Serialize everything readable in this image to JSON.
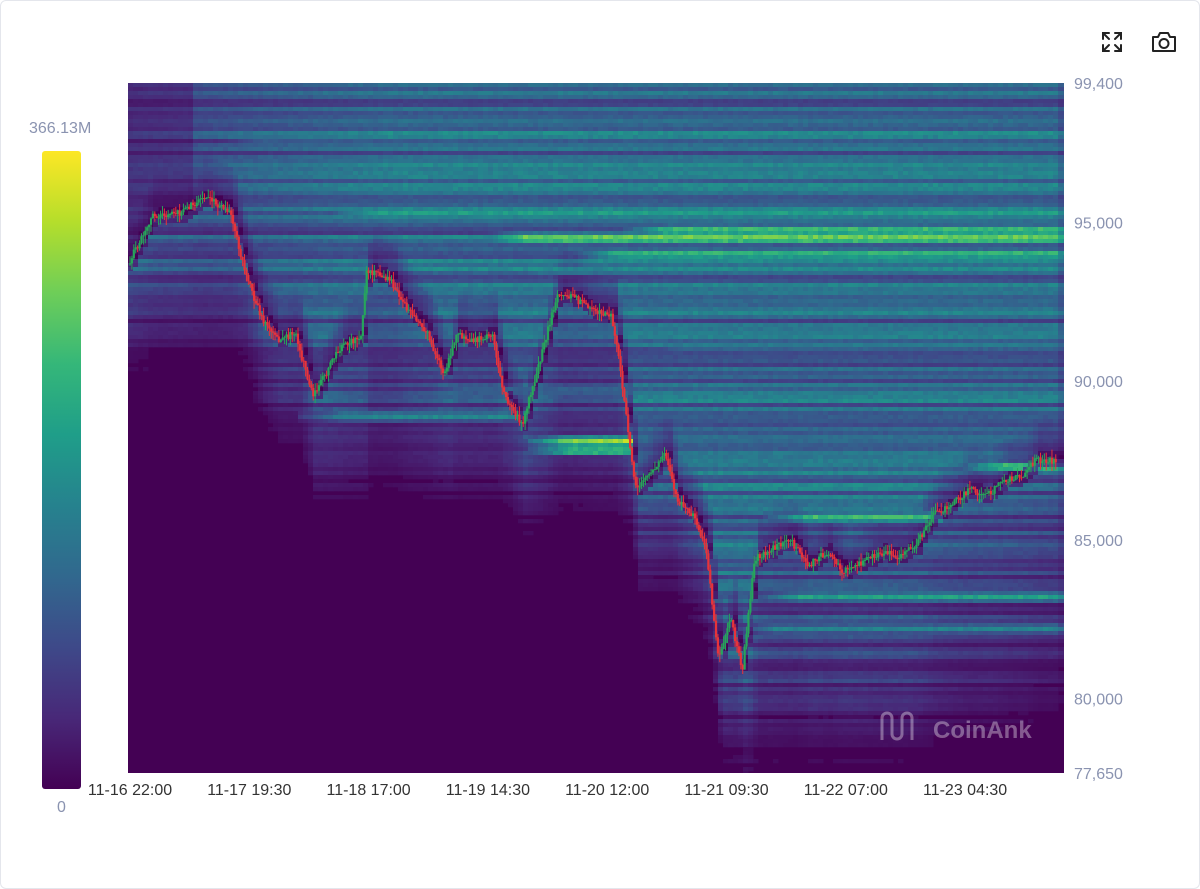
{
  "toolbar": {
    "fullscreen_icon": "fullscreen-icon",
    "screenshot_icon": "camera-icon"
  },
  "colorscale": {
    "max_label": "366.13M",
    "min_label": "0",
    "stops": [
      "#440154",
      "#482878",
      "#3e4989",
      "#31688e",
      "#26828e",
      "#1f9e89",
      "#35b779",
      "#6ece58",
      "#b5de2b",
      "#fde725"
    ]
  },
  "watermark": "CoinAnk",
  "chart_data": {
    "type": "heatmap",
    "title": "",
    "xlabel": "",
    "ylabel": "",
    "x_ticks": [
      "11-16 22:00",
      "11-17 19:30",
      "11-18 17:00",
      "11-19 14:30",
      "11-20 12:00",
      "11-21 09:30",
      "11-22 07:00",
      "11-23 04:30"
    ],
    "y_ticks": [
      99400,
      95000,
      90000,
      85000,
      80000,
      77650
    ],
    "y_tick_labels": [
      "99,400",
      "95,000",
      "90,000",
      "85,000",
      "80,000",
      "77,650"
    ],
    "ylim": [
      77650,
      99400
    ],
    "legend": "colorbar-left",
    "colors": {
      "up": "#26a65b",
      "down": "#e8333a",
      "background": "#440154"
    },
    "price_path": [
      [
        0.0,
        93700
      ],
      [
        0.2,
        95200
      ],
      [
        0.45,
        95300
      ],
      [
        0.62,
        95800
      ],
      [
        0.85,
        95400
      ],
      [
        1.0,
        93200
      ],
      [
        1.12,
        92000
      ],
      [
        1.25,
        91300
      ],
      [
        1.4,
        91500
      ],
      [
        1.55,
        89500
      ],
      [
        1.65,
        90200
      ],
      [
        1.8,
        91200
      ],
      [
        1.95,
        91300
      ],
      [
        2.0,
        93500
      ],
      [
        2.2,
        93200
      ],
      [
        2.35,
        92200
      ],
      [
        2.5,
        91600
      ],
      [
        2.65,
        90200
      ],
      [
        2.75,
        91500
      ],
      [
        2.9,
        91300
      ],
      [
        3.05,
        91500
      ],
      [
        3.15,
        89600
      ],
      [
        3.3,
        88600
      ],
      [
        3.45,
        90600
      ],
      [
        3.6,
        92800
      ],
      [
        3.75,
        92600
      ],
      [
        3.9,
        92200
      ],
      [
        4.05,
        92100
      ],
      [
        4.12,
        90600
      ],
      [
        4.25,
        86600
      ],
      [
        4.4,
        87200
      ],
      [
        4.5,
        87700
      ],
      [
        4.6,
        86300
      ],
      [
        4.75,
        85700
      ],
      [
        4.85,
        84600
      ],
      [
        4.95,
        81200
      ],
      [
        5.05,
        82500
      ],
      [
        5.15,
        80900
      ],
      [
        5.25,
        84400
      ],
      [
        5.4,
        84700
      ],
      [
        5.55,
        85000
      ],
      [
        5.7,
        84200
      ],
      [
        5.85,
        84600
      ],
      [
        6.0,
        84000
      ],
      [
        6.15,
        84300
      ],
      [
        6.3,
        84600
      ],
      [
        6.45,
        84500
      ],
      [
        6.6,
        84800
      ],
      [
        6.75,
        85800
      ],
      [
        6.9,
        86100
      ],
      [
        7.05,
        86600
      ],
      [
        7.2,
        86400
      ],
      [
        7.35,
        86900
      ],
      [
        7.5,
        87000
      ],
      [
        7.6,
        87500
      ],
      [
        7.77,
        87500
      ]
    ],
    "liquidity_levels": [
      {
        "price": 94500,
        "start": 2.9,
        "intensity": 0.97
      },
      {
        "price": 94750,
        "start": 4.1,
        "intensity": 0.85
      },
      {
        "price": 94000,
        "start": 3.7,
        "intensity": 0.8
      },
      {
        "price": 93500,
        "start": 3.0,
        "intensity": 0.55
      },
      {
        "price": 95300,
        "start": 1.6,
        "intensity": 0.6
      },
      {
        "price": 96500,
        "start": 0.7,
        "intensity": 0.45
      },
      {
        "price": 97500,
        "start": 0.7,
        "intensity": 0.4
      },
      {
        "price": 88100,
        "start": 3.3,
        "end": 4.2,
        "intensity": 0.97
      },
      {
        "price": 87800,
        "start": 3.3,
        "end": 4.2,
        "intensity": 0.85
      },
      {
        "price": 87300,
        "start": 6.9,
        "intensity": 0.88
      },
      {
        "price": 85700,
        "start": 5.3,
        "end": 6.8,
        "intensity": 0.78
      },
      {
        "price": 83200,
        "start": 5.2,
        "intensity": 0.62
      },
      {
        "price": 82200,
        "start": 5.0,
        "intensity": 0.5
      },
      {
        "price": 88900,
        "start": 1.4,
        "end": 3.3,
        "intensity": 0.55
      },
      {
        "price": 89700,
        "start": 2.4,
        "intensity": 0.4
      },
      {
        "price": 91000,
        "start": 4.2,
        "intensity": 0.35
      }
    ]
  }
}
